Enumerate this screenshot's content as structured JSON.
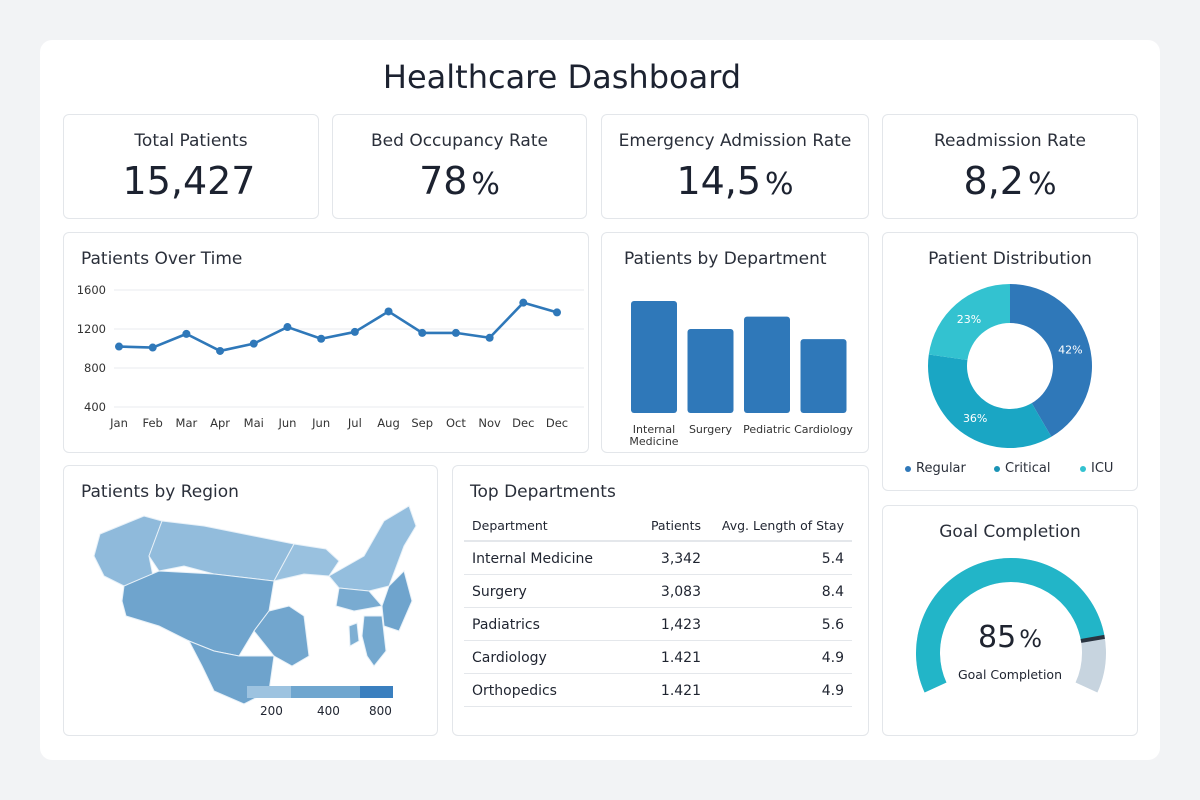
{
  "title": "Healthcare Dashboard",
  "kpis": [
    {
      "label": "Total Patients",
      "value": "15,427",
      "unit": ""
    },
    {
      "label": "Bed Occupancy Rate",
      "value": "78",
      "unit": "%"
    },
    {
      "label": "Emergency Admission Rate",
      "value": "14,5",
      "unit": "%"
    },
    {
      "label": "Readmission Rate",
      "value": "8,2",
      "unit": "%"
    }
  ],
  "colors": {
    "primary": "#2f78b9",
    "critical": "#1aa6c4",
    "icu": "#33c2d0",
    "gauge_track": "#c7d4df",
    "border": "#e3e6ea"
  },
  "chart_data": [
    {
      "type": "line",
      "title": "Patients Over Time",
      "categories": [
        "Jan",
        "Feb",
        "Mar",
        "Apr",
        "Mai",
        "Jun",
        "Jun",
        "Jul",
        "Aug",
        "Sep",
        "Oct",
        "Nov",
        "Dec",
        "Dec"
      ],
      "values": [
        1020,
        1010,
        1150,
        975,
        1050,
        1220,
        1100,
        1170,
        1380,
        1160,
        1160,
        1110,
        1470,
        1370
      ],
      "yticks": [
        1600,
        1200,
        800,
        400
      ],
      "ylim": [
        400,
        1600
      ],
      "grid": true
    },
    {
      "type": "bar",
      "title": "Patients by Department",
      "categories": [
        "Internal Medicine",
        "Surgery",
        "Pediatric",
        "Cardiology"
      ],
      "category_lines": [
        [
          "Internal",
          "Medicine"
        ],
        [
          "Surgery"
        ],
        [
          "Pediatric"
        ],
        [
          "Cardiology"
        ]
      ],
      "values": [
        100,
        75,
        86,
        66
      ]
    },
    {
      "type": "pie",
      "title": "Patient Distribution",
      "donut": true,
      "labels": [
        "Regular",
        "Critical",
        "ICU"
      ],
      "values": [
        42,
        36,
        23
      ],
      "value_labels": [
        "42%",
        "36%",
        "23%"
      ],
      "legend": "bottom"
    }
  ],
  "region": {
    "title": "Patients by Region",
    "legend_ticks": [
      "200",
      "400",
      "800"
    ],
    "legend_colors": [
      "#9dc3e0",
      "#6fa6cf",
      "#3a7fbf"
    ]
  },
  "table": {
    "title": "Top Departments",
    "columns": [
      "Department",
      "Patients",
      "Avg. Length of Stay"
    ],
    "rows": [
      [
        "Internal Medicine",
        "3,342",
        "5.4"
      ],
      [
        "Surgery",
        "3,083",
        "8.4"
      ],
      [
        "Padiatrics",
        "1,423",
        "5.6"
      ],
      [
        "Cardiology",
        "1.421",
        "4.9"
      ],
      [
        "Orthopedics",
        "1.421",
        "4.9"
      ]
    ]
  },
  "goal": {
    "title": "Goal Completion",
    "value": "85",
    "unit": "%",
    "caption": "Goal Completion",
    "percent": 85
  }
}
